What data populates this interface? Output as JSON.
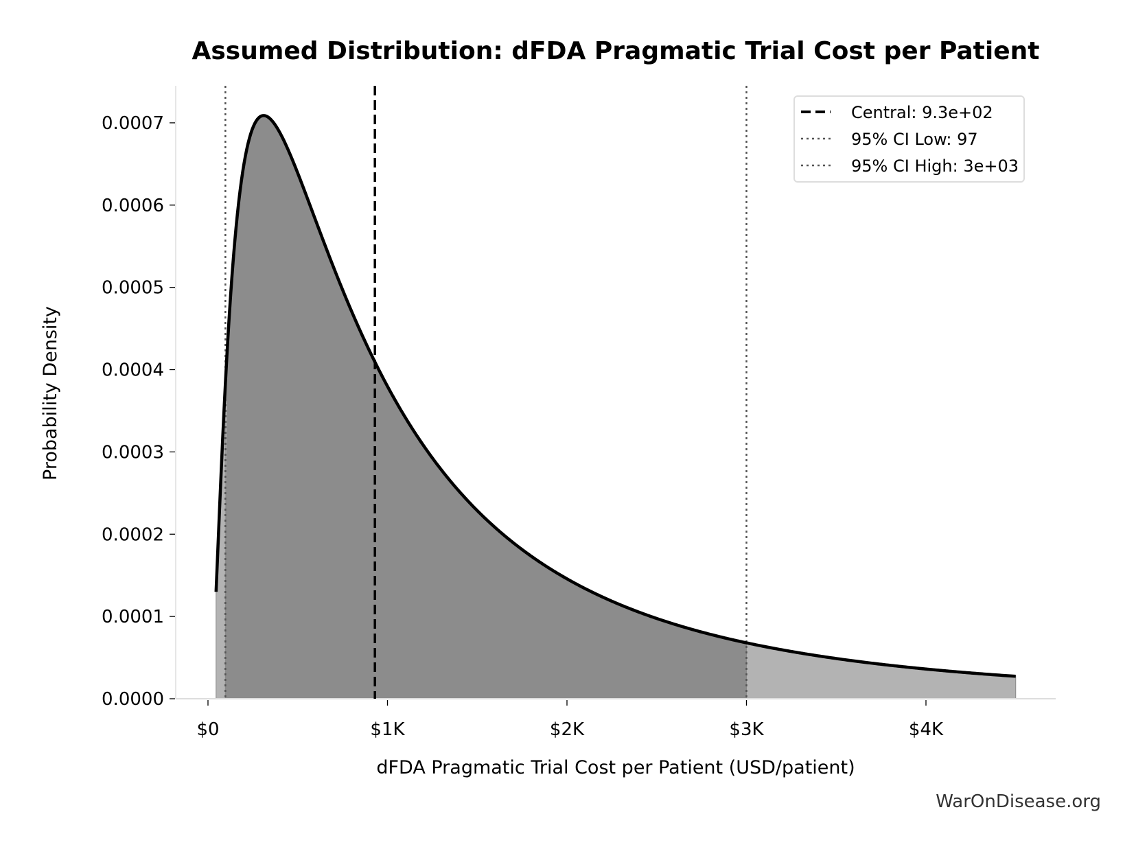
{
  "chart_data": {
    "type": "area",
    "title": "Assumed Distribution: dFDA Pragmatic Trial Cost per Patient",
    "xlabel": "dFDA Pragmatic Trial Cost per Patient (USD/patient)",
    "ylabel": "Probability Density",
    "xlim": [
      -180,
      4720
    ],
    "ylim": [
      0,
      0.000745
    ],
    "x_ticks": [
      0,
      1000,
      2000,
      3000,
      4000
    ],
    "x_tick_labels": [
      "$0",
      "$1K",
      "$2K",
      "$3K",
      "$4K"
    ],
    "y_ticks": [
      0,
      0.0001,
      0.0002,
      0.0003,
      0.0004,
      0.0005,
      0.0006,
      0.0007
    ],
    "y_tick_labels": [
      "0.0000",
      "0.0001",
      "0.0002",
      "0.0003",
      "0.0004",
      "0.0005",
      "0.0006",
      "0.0007"
    ],
    "distribution": {
      "type": "lognormal",
      "median": 930,
      "sigma": 1.048
    },
    "x_range": [
      45,
      4500
    ],
    "ci_shading": {
      "low": 97,
      "high": 3000,
      "inner_color": "#8c8c8c",
      "outer_color": "#b3b3b3"
    },
    "reference_lines": [
      {
        "label": "Central: 9.3e+02",
        "x": 930,
        "style": "dashed",
        "color": "#000000"
      },
      {
        "label": "95% CI Low: 97",
        "x": 97,
        "style": "dotted",
        "color": "#555555"
      },
      {
        "label": "95% CI High: 3e+03",
        "x": 3000,
        "style": "dotted",
        "color": "#555555"
      }
    ],
    "grid": false,
    "legend_position": "top-right",
    "curve_color": "#000000"
  },
  "watermark": "WarOnDisease.org"
}
